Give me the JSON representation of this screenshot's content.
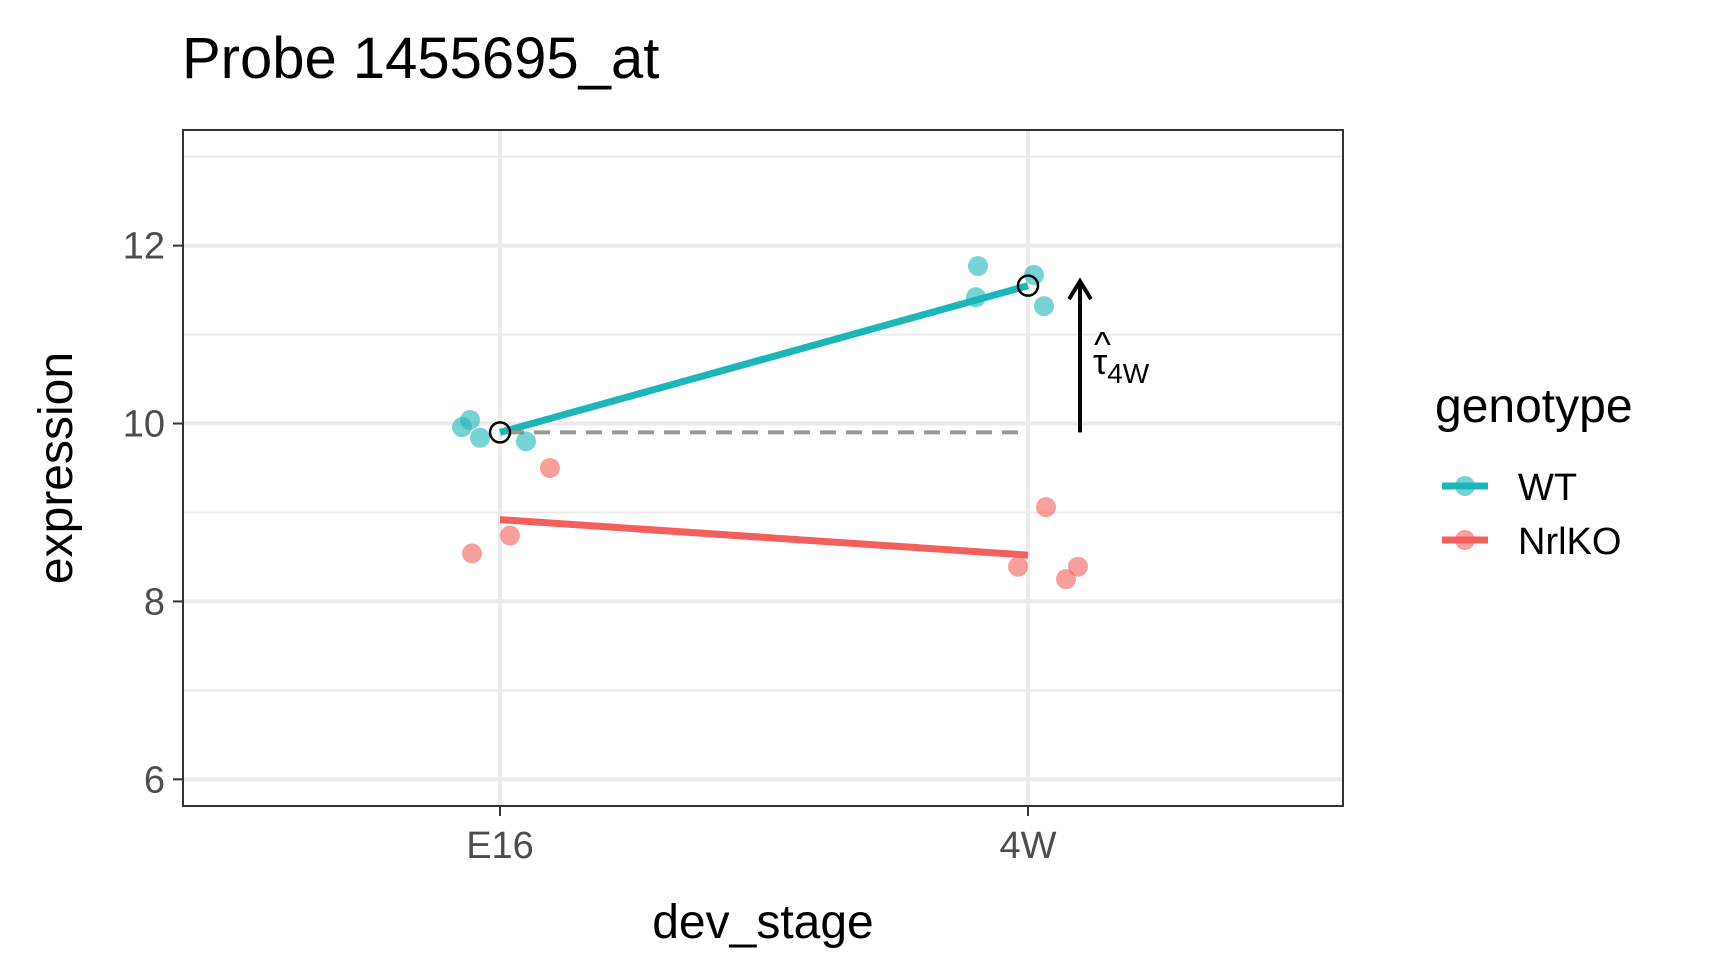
{
  "chart_data": {
    "type": "scatter",
    "title": "Probe 1455695_at",
    "xlabel": "dev_stage",
    "ylabel": "expression",
    "categories": [
      "E16",
      "4W"
    ],
    "ylim": [
      5.7,
      13.3
    ],
    "yticks": [
      6,
      8,
      10,
      12
    ],
    "grid": true,
    "legend": {
      "title": "genotype",
      "placement": "right"
    },
    "series": [
      {
        "name": "WT",
        "color": "#1CB5B8",
        "points": [
          {
            "x": "E16",
            "y": 9.96
          },
          {
            "x": "E16",
            "y": 10.04
          },
          {
            "x": "E16",
            "y": 9.84
          },
          {
            "x": "E16",
            "y": 9.8
          },
          {
            "x": "4W",
            "y": 11.77
          },
          {
            "x": "4W",
            "y": 11.42
          },
          {
            "x": "4W",
            "y": 11.67
          },
          {
            "x": "4W",
            "y": 11.32
          }
        ],
        "fit": [
          {
            "x": "E16",
            "y": 9.9
          },
          {
            "x": "4W",
            "y": 11.55
          }
        ]
      },
      {
        "name": "NrlKO",
        "color": "#F25F5C",
        "points": [
          {
            "x": "E16",
            "y": 8.54
          },
          {
            "x": "E16",
            "y": 8.74
          },
          {
            "x": "E16",
            "y": 9.5
          },
          {
            "x": "4W",
            "y": 9.06
          },
          {
            "x": "4W",
            "y": 8.39
          },
          {
            "x": "4W",
            "y": 8.25
          },
          {
            "x": "4W",
            "y": 8.39
          }
        ],
        "fit": [
          {
            "x": "E16",
            "y": 8.92
          },
          {
            "x": "4W",
            "y": 8.52
          }
        ]
      }
    ],
    "annotations": {
      "reference_level": 9.9,
      "arrow": {
        "from": 9.9,
        "to": 11.6
      },
      "tau_symbol": "τ",
      "tau_hat": "^",
      "tau_subscript": "4W"
    }
  }
}
